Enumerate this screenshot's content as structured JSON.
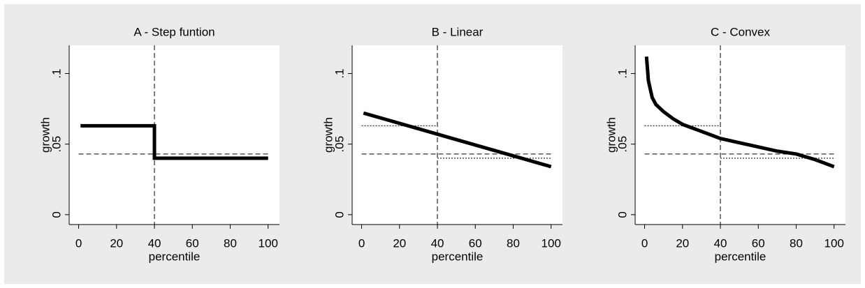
{
  "chart_data": [
    {
      "type": "line",
      "title": "A - Step funtion",
      "xlabel": "percentile",
      "ylabel": "growth",
      "x": [
        1,
        40,
        40,
        100
      ],
      "values": [
        0.063,
        0.063,
        0.04,
        0.04
      ],
      "color": "#000000",
      "xlim": [
        -5,
        106
      ],
      "ylim": [
        -0.007,
        0.12
      ],
      "xticks": [
        0,
        20,
        40,
        60,
        80,
        100
      ],
      "yticks": [
        0,
        {
          "value": 0.05,
          "label": ".05"
        },
        {
          "value": 0.1,
          "label": ".1"
        }
      ],
      "reference_lines": [
        {
          "orientation": "vertical",
          "value": 40,
          "style": "dashed"
        },
        {
          "orientation": "horizontal",
          "value": 0.043,
          "style": "dashed",
          "x": [
            0,
            100
          ]
        }
      ],
      "segments": []
    },
    {
      "type": "line",
      "title": "B - Linear",
      "xlabel": "percentile",
      "ylabel": "growth",
      "x": [
        1,
        100
      ],
      "values": [
        0.072,
        0.034
      ],
      "color": "#000000",
      "xlim": [
        -5,
        106
      ],
      "ylim": [
        -0.007,
        0.12
      ],
      "xticks": [
        0,
        20,
        40,
        60,
        80,
        100
      ],
      "yticks": [
        0,
        {
          "value": 0.05,
          "label": ".05"
        },
        {
          "value": 0.1,
          "label": ".1"
        }
      ],
      "reference_lines": [
        {
          "orientation": "vertical",
          "value": 40,
          "style": "dashed"
        },
        {
          "orientation": "horizontal",
          "value": 0.043,
          "style": "dashed",
          "x": [
            0,
            100
          ]
        }
      ],
      "segments": [
        {
          "x": [
            0,
            40
          ],
          "values": [
            0.063,
            0.063
          ],
          "style": "dotted"
        },
        {
          "x": [
            40,
            100
          ],
          "values": [
            0.04,
            0.04
          ],
          "style": "dotted"
        }
      ]
    },
    {
      "type": "line",
      "title": "C - Convex",
      "xlabel": "percentile",
      "ylabel": "growth",
      "x": [
        1,
        2,
        4,
        6,
        10,
        15,
        20,
        30,
        40,
        50,
        60,
        70,
        80,
        85,
        90,
        100
      ],
      "values": [
        0.112,
        0.095,
        0.083,
        0.078,
        0.073,
        0.068,
        0.064,
        0.059,
        0.054,
        0.051,
        0.048,
        0.045,
        0.043,
        0.041,
        0.039,
        0.034
      ],
      "color": "#000000",
      "xlim": [
        -5,
        106
      ],
      "ylim": [
        -0.007,
        0.12
      ],
      "xticks": [
        0,
        20,
        40,
        60,
        80,
        100
      ],
      "yticks": [
        0,
        {
          "value": 0.05,
          "label": ".05"
        },
        {
          "value": 0.1,
          "label": ".1"
        }
      ],
      "reference_lines": [
        {
          "orientation": "vertical",
          "value": 40,
          "style": "dashed"
        },
        {
          "orientation": "horizontal",
          "value": 0.043,
          "style": "dashed",
          "x": [
            0,
            100
          ]
        }
      ],
      "segments": [
        {
          "x": [
            0,
            40
          ],
          "values": [
            0.063,
            0.063
          ],
          "style": "dotted"
        },
        {
          "x": [
            40,
            100
          ],
          "values": [
            0.04,
            0.04
          ],
          "style": "dotted"
        }
      ]
    }
  ]
}
